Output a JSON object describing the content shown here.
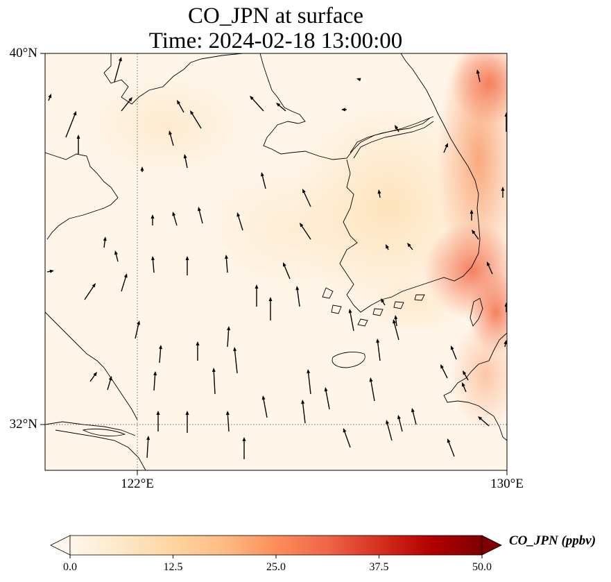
{
  "title": "CO_JPN at surface",
  "subtitle": "Time: 2024-02-18 13:00:00",
  "lat_labels": [
    "40°N",
    "32°N"
  ],
  "lon_labels": [
    "122°E",
    "130°E"
  ],
  "colorbar": {
    "label": "CO_JPN (ppbv)",
    "ticks": [
      "0.0",
      "12.5",
      "25.0",
      "37.5",
      "50.0"
    ],
    "min": 0,
    "max": 50,
    "colormap": "OrRd",
    "colors": [
      "#fff7ec",
      "#fee8c8",
      "#fdd49e",
      "#fdbb84",
      "#fc8d59",
      "#ef6548",
      "#d7301f",
      "#b30000",
      "#7f0000"
    ],
    "extend": "both"
  },
  "map": {
    "lon_range": [
      120,
      130
    ],
    "lat_range": [
      31,
      40
    ],
    "gridlines": {
      "lon": [
        122,
        130
      ],
      "lat": [
        32,
        40
      ]
    },
    "wind_vectors": "north-northwesterly, arrows pointing up"
  }
}
